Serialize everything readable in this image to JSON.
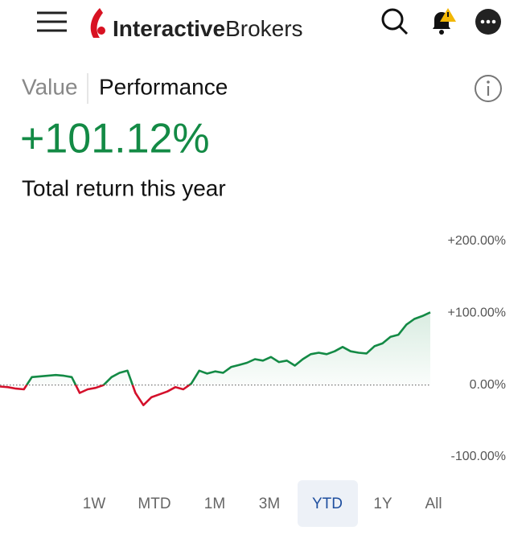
{
  "header": {
    "logo_bold": "Interactive",
    "logo_regular": "Brokers"
  },
  "tabs": [
    "Value",
    "Performance"
  ],
  "headline": {
    "value": "+101.12%",
    "caption": "Total return this year"
  },
  "chart_data": {
    "type": "line",
    "values": [
      -2,
      -3,
      -5,
      -6,
      11,
      12,
      13,
      14,
      13,
      11,
      -11,
      -6,
      -4,
      0,
      11,
      17,
      20,
      -11,
      -28,
      -17,
      -13,
      -9,
      -3,
      -6,
      2,
      20,
      16,
      19,
      17,
      25,
      28,
      31,
      36,
      34,
      39,
      32,
      34,
      27,
      36,
      43,
      45,
      43,
      47,
      53,
      47,
      45,
      44,
      54,
      58,
      67,
      70,
      84,
      92,
      96,
      101.12
    ],
    "color": "#138a45",
    "negative_color": "#d4102b",
    "ylim": [
      -100,
      200
    ],
    "yticks": [
      {
        "value": 200,
        "label": "+200.00%"
      },
      {
        "value": 100,
        "label": "+100.00%"
      },
      {
        "value": 0,
        "label": "0.00%"
      },
      {
        "value": -100,
        "label": "-100.00%"
      }
    ],
    "zero_line": true
  },
  "ranges": [
    "1W",
    "MTD",
    "1M",
    "3M",
    "YTD",
    "1Y",
    "All"
  ],
  "selected_range": "YTD"
}
